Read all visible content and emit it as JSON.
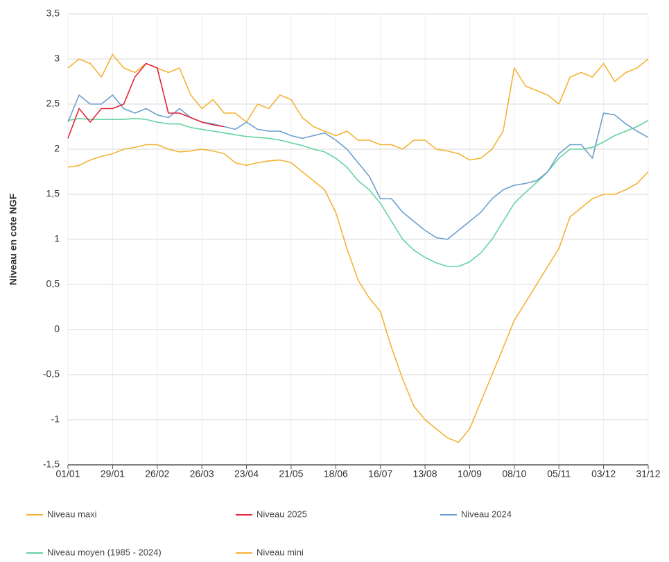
{
  "chart_data": {
    "type": "line",
    "y_label": "Niveau en cote NGF",
    "categories": [
      "01/01",
      null,
      null,
      null,
      "29/01",
      null,
      null,
      null,
      "26/02",
      null,
      null,
      null,
      "26/03",
      null,
      null,
      null,
      "23/04",
      null,
      null,
      null,
      "21/05",
      null,
      null,
      null,
      "18/06",
      null,
      null,
      null,
      "16/07",
      null,
      null,
      null,
      "13/08",
      null,
      null,
      null,
      "10/09",
      null,
      null,
      null,
      "08/10",
      null,
      null,
      null,
      "05/11",
      null,
      null,
      null,
      "03/12",
      null,
      null,
      null,
      "31/12"
    ],
    "ylim": [
      -1.5,
      3.5
    ],
    "yticks": [
      {
        "value": -1.5,
        "label": "-1,5"
      },
      -1,
      {
        "value": -0.5,
        "label": "-0,5"
      },
      0,
      {
        "value": 0.5,
        "label": "0,5"
      },
      1,
      {
        "value": 1.5,
        "label": "1,5"
      },
      2,
      {
        "value": 2.5,
        "label": "2,5"
      },
      3,
      {
        "value": 3.5,
        "label": "3,5"
      }
    ],
    "grid": true,
    "series": [
      {
        "name": "Niveau maxi",
        "color": "#f4b233",
        "values": [
          2.9,
          3.0,
          2.95,
          2.8,
          3.05,
          2.9,
          2.85,
          2.95,
          2.9,
          2.85,
          2.9,
          2.6,
          2.45,
          2.55,
          2.4,
          2.4,
          2.3,
          2.5,
          2.45,
          2.6,
          2.55,
          2.35,
          2.25,
          2.2,
          2.15,
          2.2,
          2.1,
          2.1,
          2.05,
          2.05,
          2.0,
          2.1,
          2.1,
          2.0,
          1.98,
          1.95,
          1.88,
          1.9,
          2.0,
          2.2,
          2.9,
          2.7,
          2.65,
          2.6,
          2.5,
          2.8,
          2.85,
          2.8,
          2.95,
          2.75,
          2.85,
          2.9,
          3.0
        ]
      },
      {
        "name": "Niveau 2025",
        "color": "#e3243a",
        "values": [
          2.12,
          2.45,
          2.3,
          2.45,
          2.45,
          2.5,
          2.8,
          2.95,
          2.9,
          2.4,
          2.4,
          2.35,
          2.3,
          2.27,
          2.25,
          null,
          null,
          null,
          null,
          null,
          null,
          null,
          null,
          null,
          null,
          null,
          null,
          null,
          null,
          null,
          null,
          null,
          null,
          null,
          null,
          null,
          null,
          null,
          null,
          null,
          null,
          null,
          null,
          null,
          null,
          null,
          null,
          null,
          null,
          null,
          null,
          null,
          null
        ]
      },
      {
        "name": "Niveau 2024",
        "color": "#6a9fd0",
        "values": [
          2.3,
          2.6,
          2.5,
          2.5,
          2.6,
          2.45,
          2.4,
          2.45,
          2.38,
          2.35,
          2.45,
          2.35,
          2.3,
          2.28,
          2.25,
          2.22,
          2.3,
          2.22,
          2.2,
          2.2,
          2.15,
          2.12,
          2.15,
          2.18,
          2.1,
          2.0,
          1.85,
          1.7,
          1.45,
          1.45,
          1.3,
          1.2,
          1.1,
          1.02,
          1.0,
          1.1,
          1.2,
          1.3,
          1.45,
          1.55,
          1.6,
          1.62,
          1.65,
          1.75,
          1.95,
          2.05,
          2.05,
          1.9,
          2.4,
          2.38,
          2.28,
          2.2,
          2.13
        ]
      },
      {
        "name": "Niveau moyen (1985 - 2024)",
        "color": "#62d3a0",
        "values": [
          2.32,
          2.34,
          2.33,
          2.33,
          2.33,
          2.33,
          2.34,
          2.33,
          2.3,
          2.28,
          2.28,
          2.24,
          2.22,
          2.2,
          2.18,
          2.16,
          2.14,
          2.13,
          2.12,
          2.1,
          2.07,
          2.04,
          2.0,
          1.97,
          1.9,
          1.8,
          1.65,
          1.55,
          1.4,
          1.2,
          1.0,
          0.88,
          0.8,
          0.74,
          0.7,
          0.7,
          0.75,
          0.85,
          1.0,
          1.2,
          1.4,
          1.52,
          1.63,
          1.75,
          1.9,
          2.0,
          2.0,
          2.02,
          2.08,
          2.15,
          2.2,
          2.25,
          2.32
        ]
      },
      {
        "name": "Niveau mini",
        "color": "#f4b233",
        "values": [
          1.8,
          1.82,
          1.88,
          1.92,
          1.95,
          2.0,
          2.02,
          2.05,
          2.05,
          2.0,
          1.97,
          1.98,
          2.0,
          1.98,
          1.95,
          1.85,
          1.82,
          1.85,
          1.87,
          1.88,
          1.85,
          1.75,
          1.65,
          1.55,
          1.3,
          0.9,
          0.55,
          0.35,
          0.2,
          -0.2,
          -0.55,
          -0.85,
          -1.0,
          -1.1,
          -1.2,
          -1.25,
          -1.1,
          -0.8,
          -0.5,
          -0.2,
          0.1,
          0.3,
          0.5,
          0.7,
          0.9,
          1.25,
          1.35,
          1.45,
          1.5,
          1.5,
          1.55,
          1.62,
          1.75
        ]
      }
    ]
  }
}
